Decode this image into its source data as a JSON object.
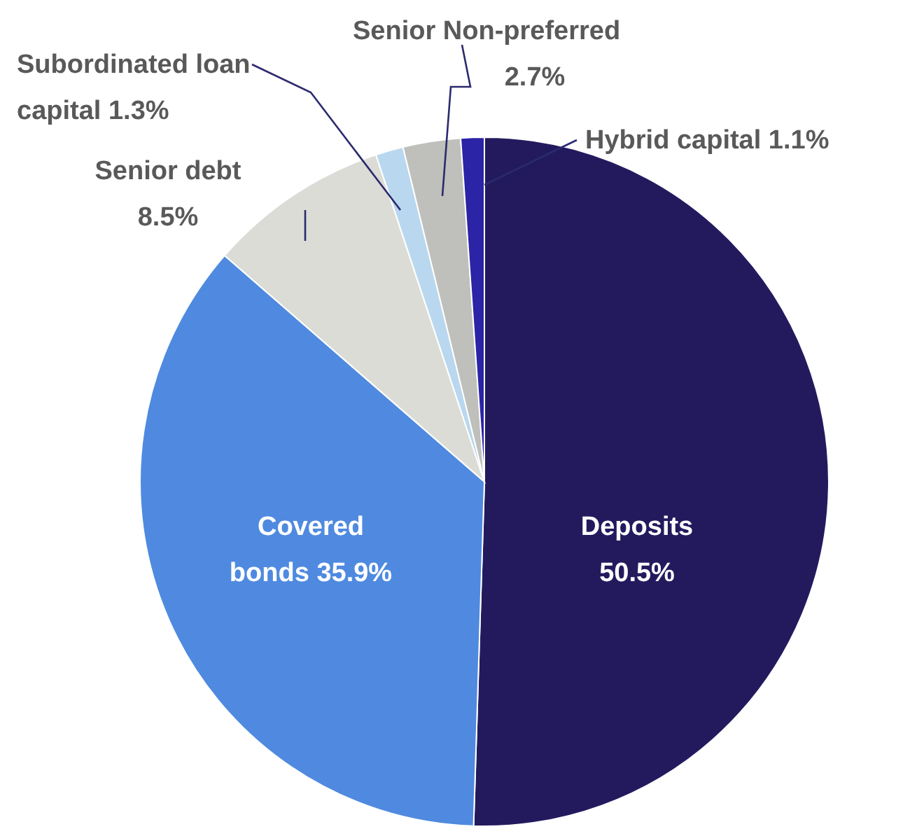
{
  "chart_data": {
    "type": "pie",
    "categories": [
      "Deposits",
      "Covered bonds",
      "Senior debt",
      "Subordinated loan capital",
      "Senior Non-preferred",
      "Hybrid capital"
    ],
    "values": [
      50.5,
      35.9,
      8.5,
      1.3,
      2.7,
      1.1
    ],
    "colors": [
      "#231a5e",
      "#4f8ae0",
      "#dcdcd7",
      "#b9d7ef",
      "#bfbfbb",
      "#2b24a6"
    ],
    "value_labels": [
      "50.5%",
      "35.9%",
      "8.5%",
      "1.3%",
      "2.7%",
      "1.1%"
    ]
  }
}
